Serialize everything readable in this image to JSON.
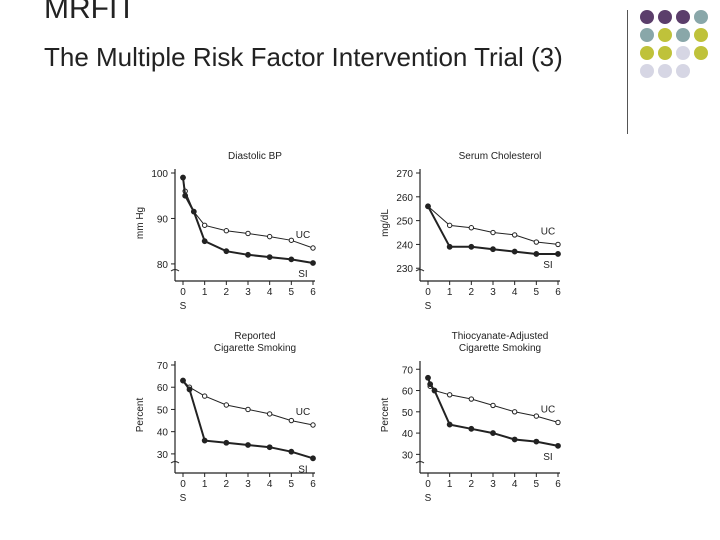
{
  "slide": {
    "title": "MRFIT",
    "subtitle": "The Multiple Risk Factor Intervention Trial (3)"
  },
  "decor": {
    "dot_colors": [
      "#5b3e6b",
      "#5b3e6b",
      "#5b3e6b",
      "#89a7a9",
      "#89a7a9",
      "#bfc23a",
      "#89a7a9",
      "#bfc23a",
      "#bfc23a",
      "#bfc23a",
      "#d6d6e4",
      "#bfc23a",
      "#d6d6e4",
      "#d6d6e4",
      "#d6d6e4"
    ]
  },
  "chart_data": [
    {
      "type": "line",
      "title": [
        "Diastolic BP"
      ],
      "ylabel": "mm Hg",
      "x_ticks": [
        "0",
        "1",
        "2",
        "3",
        "4",
        "5",
        "6"
      ],
      "x_sub": "S",
      "ylim": [
        78,
        100
      ],
      "y_ticks": [
        100,
        90,
        80
      ],
      "series": [
        {
          "name": "UC",
          "x": [
            0,
            0.1,
            0.5,
            1,
            2,
            3,
            4,
            5,
            6
          ],
          "values": [
            99,
            96,
            91.5,
            88.5,
            87.3,
            86.7,
            86,
            85.2,
            83.5
          ]
        },
        {
          "name": "SI",
          "x": [
            0,
            0.1,
            0.5,
            1,
            2,
            3,
            4,
            5,
            6
          ],
          "values": [
            99,
            95,
            91.5,
            85,
            82.8,
            82,
            81.5,
            81,
            80.2
          ]
        }
      ],
      "labels": {
        "uc": "UC",
        "si": "SI"
      }
    },
    {
      "type": "line",
      "title": [
        "Serum Cholesterol"
      ],
      "ylabel": "mg/dL",
      "x_ticks": [
        "0",
        "1",
        "2",
        "3",
        "4",
        "5",
        "6"
      ],
      "x_sub": "S",
      "ylim": [
        228,
        270
      ],
      "y_ticks": [
        270,
        260,
        250,
        240,
        230
      ],
      "series": [
        {
          "name": "UC",
          "x": [
            0,
            1,
            2,
            3,
            4,
            5,
            6
          ],
          "values": [
            256,
            248,
            247,
            245,
            244,
            241,
            240
          ]
        },
        {
          "name": "SI",
          "x": [
            0,
            1,
            2,
            3,
            4,
            5,
            6
          ],
          "values": [
            256,
            239,
            239,
            238,
            237,
            236,
            236
          ]
        }
      ],
      "labels": {
        "uc": "UC",
        "si": "SI"
      }
    },
    {
      "type": "line",
      "title": [
        "Reported",
        "Cigarette Smoking"
      ],
      "ylabel": "Percent",
      "x_ticks": [
        "0",
        "1",
        "2",
        "3",
        "4",
        "5",
        "6"
      ],
      "x_sub": "S",
      "ylim": [
        25,
        70
      ],
      "y_ticks": [
        70,
        60,
        50,
        40,
        30
      ],
      "series": [
        {
          "name": "UC",
          "x": [
            0,
            0.3,
            1,
            2,
            3,
            4,
            5,
            6
          ],
          "values": [
            63,
            60,
            56,
            52,
            50,
            48,
            45,
            43
          ]
        },
        {
          "name": "SI",
          "x": [
            0,
            0.3,
            1,
            2,
            3,
            4,
            5,
            6
          ],
          "values": [
            63,
            59,
            36,
            35,
            34,
            33,
            31,
            28
          ]
        }
      ],
      "labels": {
        "uc": "UC",
        "si": "SI"
      }
    },
    {
      "type": "line",
      "title": [
        "Thiocyanate-Adjusted",
        "Cigarette Smoking"
      ],
      "ylabel": "Percent",
      "x_ticks": [
        "0",
        "1",
        "2",
        "3",
        "4",
        "5",
        "6"
      ],
      "x_sub": "S",
      "ylim": [
        25,
        72
      ],
      "y_ticks": [
        70,
        60,
        50,
        40,
        30
      ],
      "series": [
        {
          "name": "UC",
          "x": [
            0,
            0.1,
            0.3,
            1,
            2,
            3,
            4,
            5,
            6
          ],
          "values": [
            66,
            62,
            60,
            58,
            56,
            53,
            50,
            48,
            45
          ]
        },
        {
          "name": "SI",
          "x": [
            0,
            0.1,
            0.3,
            1,
            2,
            3,
            4,
            5,
            6
          ],
          "values": [
            66,
            63,
            60,
            44,
            42,
            40,
            37,
            36,
            34
          ]
        }
      ],
      "labels": {
        "uc": "UC",
        "si": "SI"
      }
    }
  ]
}
